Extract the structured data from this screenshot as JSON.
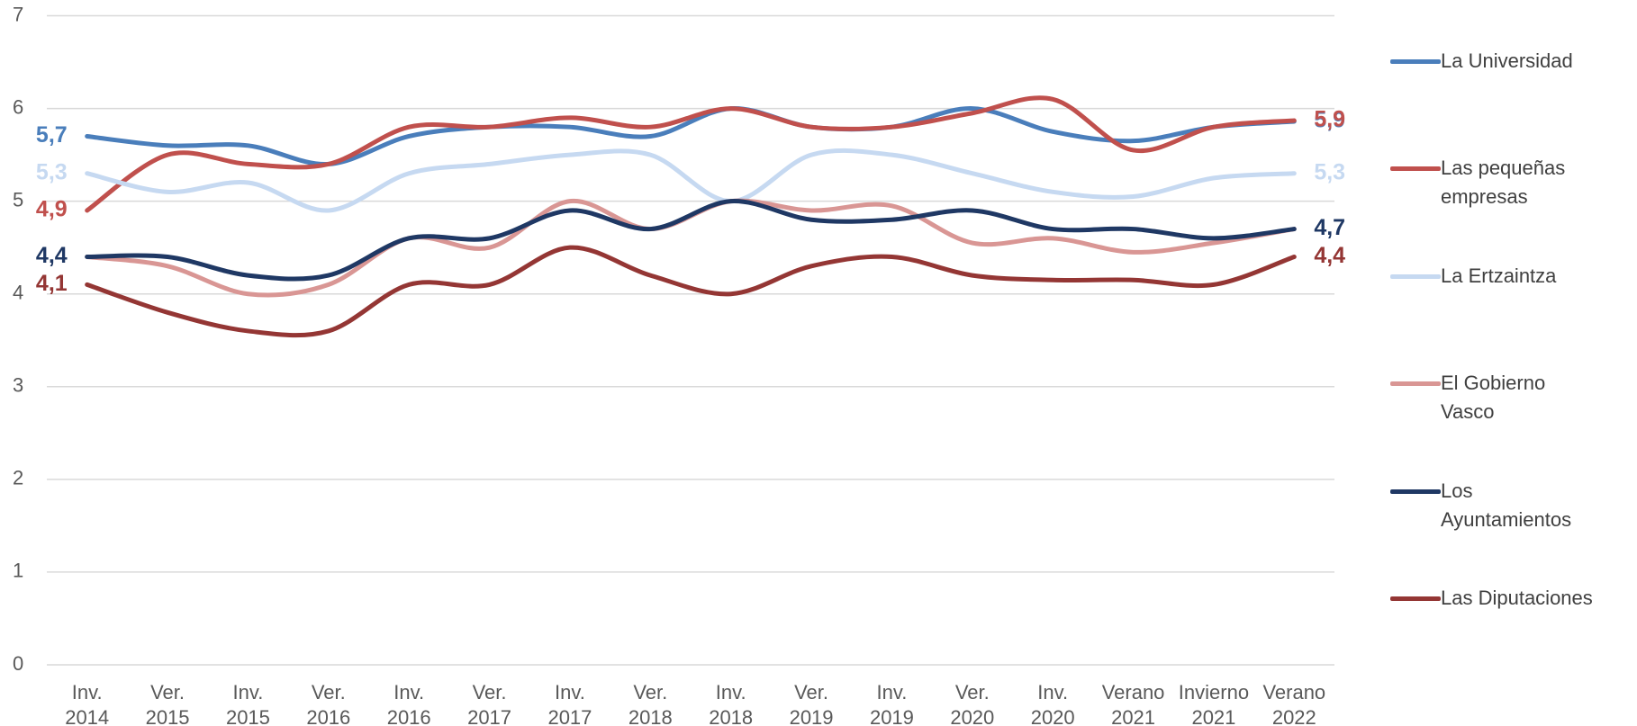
{
  "chart_data": {
    "type": "line",
    "categories": [
      "Inv. 2014",
      "Ver. 2015",
      "Inv. 2015",
      "Ver. 2016",
      "Inv. 2016",
      "Ver. 2017",
      "Inv. 2017",
      "Ver. 2018",
      "Inv. 2018",
      "Ver. 2019",
      "Inv. 2019",
      "Ver. 2020",
      "Inv. 2020",
      "Verano 2021",
      "Invierno 2021",
      "Verano 2022"
    ],
    "ylim": [
      0,
      7
    ],
    "yticks": [
      0,
      1,
      2,
      3,
      4,
      5,
      6,
      7
    ],
    "grid": true,
    "legend": "right",
    "series": [
      {
        "name": "La Universidad",
        "color": "#4a7ebb",
        "values": [
          5.7,
          5.6,
          5.6,
          5.4,
          5.7,
          5.8,
          5.8,
          5.7,
          6.0,
          5.8,
          5.8,
          6.0,
          5.75,
          5.65,
          5.8,
          5.86
        ],
        "value_labels": [
          "5,7",
          null,
          null,
          null,
          null,
          null,
          null,
          null,
          null,
          null,
          null,
          null,
          null,
          null,
          null,
          "5,9"
        ]
      },
      {
        "name": "Las pequeñas empresas",
        "color": "#c0504d",
        "values": [
          4.9,
          5.5,
          5.4,
          5.4,
          5.8,
          5.8,
          5.9,
          5.8,
          6.0,
          5.8,
          5.8,
          5.95,
          6.1,
          5.55,
          5.8,
          5.87
        ],
        "value_labels": [
          "4,9",
          null,
          null,
          null,
          null,
          null,
          null,
          null,
          null,
          null,
          null,
          null,
          null,
          null,
          null,
          "5,9"
        ]
      },
      {
        "name": "La Ertzaintza",
        "color": "#c6d9f1",
        "values": [
          5.3,
          5.1,
          5.2,
          4.9,
          5.3,
          5.4,
          5.5,
          5.5,
          5.0,
          5.5,
          5.5,
          5.3,
          5.1,
          5.05,
          5.25,
          5.3
        ],
        "value_labels": [
          "5,3",
          null,
          null,
          null,
          null,
          null,
          null,
          null,
          null,
          null,
          null,
          null,
          null,
          null,
          null,
          "5,3"
        ]
      },
      {
        "name": "El Gobierno Vasco",
        "color": "#d99694",
        "values": [
          4.4,
          4.3,
          4.0,
          4.1,
          4.6,
          4.5,
          5.0,
          4.7,
          5.0,
          4.9,
          4.95,
          4.55,
          4.6,
          4.45,
          4.55,
          4.7
        ]
      },
      {
        "name": "Los Ayuntamientos",
        "color": "#1f3864",
        "values": [
          4.4,
          4.4,
          4.2,
          4.2,
          4.6,
          4.6,
          4.9,
          4.7,
          5.0,
          4.8,
          4.8,
          4.9,
          4.7,
          4.7,
          4.6,
          4.7
        ],
        "value_labels": [
          "4,4",
          null,
          null,
          null,
          null,
          null,
          null,
          null,
          null,
          null,
          null,
          null,
          null,
          null,
          null,
          "4,7"
        ]
      },
      {
        "name": "Las Diputaciones",
        "color": "#943634",
        "values": [
          4.1,
          3.8,
          3.6,
          3.6,
          4.1,
          4.1,
          4.5,
          4.2,
          4.0,
          4.3,
          4.4,
          4.2,
          4.15,
          4.15,
          4.1,
          4.4
        ],
        "value_labels": [
          "4,1",
          null,
          null,
          null,
          null,
          null,
          null,
          null,
          null,
          null,
          null,
          null,
          null,
          null,
          null,
          "4,4"
        ]
      }
    ]
  }
}
